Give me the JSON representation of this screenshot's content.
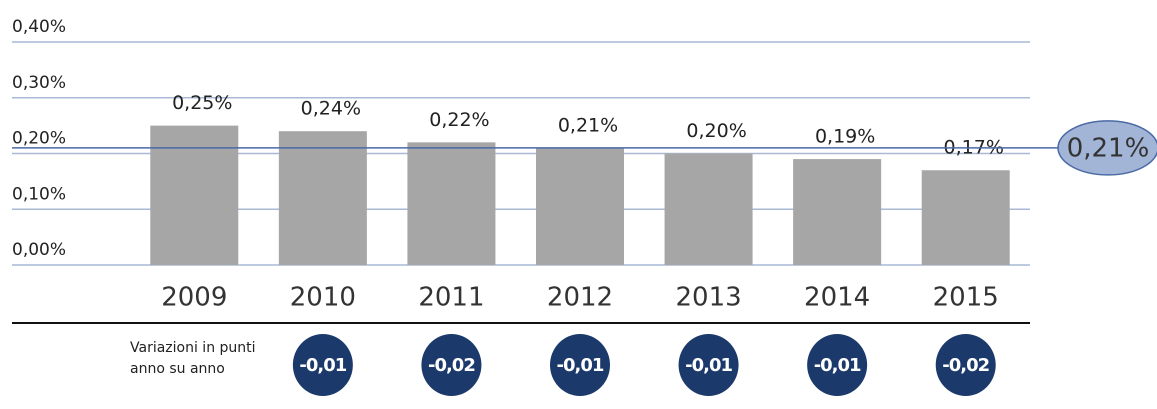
{
  "chart_data": {
    "type": "bar",
    "categories": [
      "2009",
      "2010",
      "2011",
      "2012",
      "2013",
      "2014",
      "2015"
    ],
    "values": [
      0.25,
      0.24,
      0.22,
      0.21,
      0.2,
      0.19,
      0.17
    ],
    "value_labels": [
      "0,25%",
      "0,24%",
      "0,22%",
      "0,21%",
      "0,20%",
      "0,19%",
      "0,17%"
    ],
    "color": "#a6a6a6",
    "ylim": [
      0,
      0.4
    ],
    "yticks": [
      {
        "value": 0,
        "label": "0,00%"
      },
      {
        "value": 0.1,
        "label": "0,10%"
      },
      {
        "value": 0.2,
        "label": "0,20%"
      },
      {
        "value": 0.3,
        "label": "0,30%"
      },
      {
        "value": 0.4,
        "label": "0,40%"
      }
    ],
    "grid": true,
    "average": {
      "value": 0.21,
      "label": "0,21%"
    },
    "changes_title": "Variazioni in punti anno su anno",
    "changes": [
      -0.01,
      -0.02,
      -0.01,
      -0.01,
      -0.01,
      -0.02
    ],
    "change_labels": [
      "-0,01",
      "-0,02",
      "-0,01",
      "-0,01",
      "-0,01",
      "-0,02"
    ],
    "changes_color": "#1b3a6b"
  }
}
